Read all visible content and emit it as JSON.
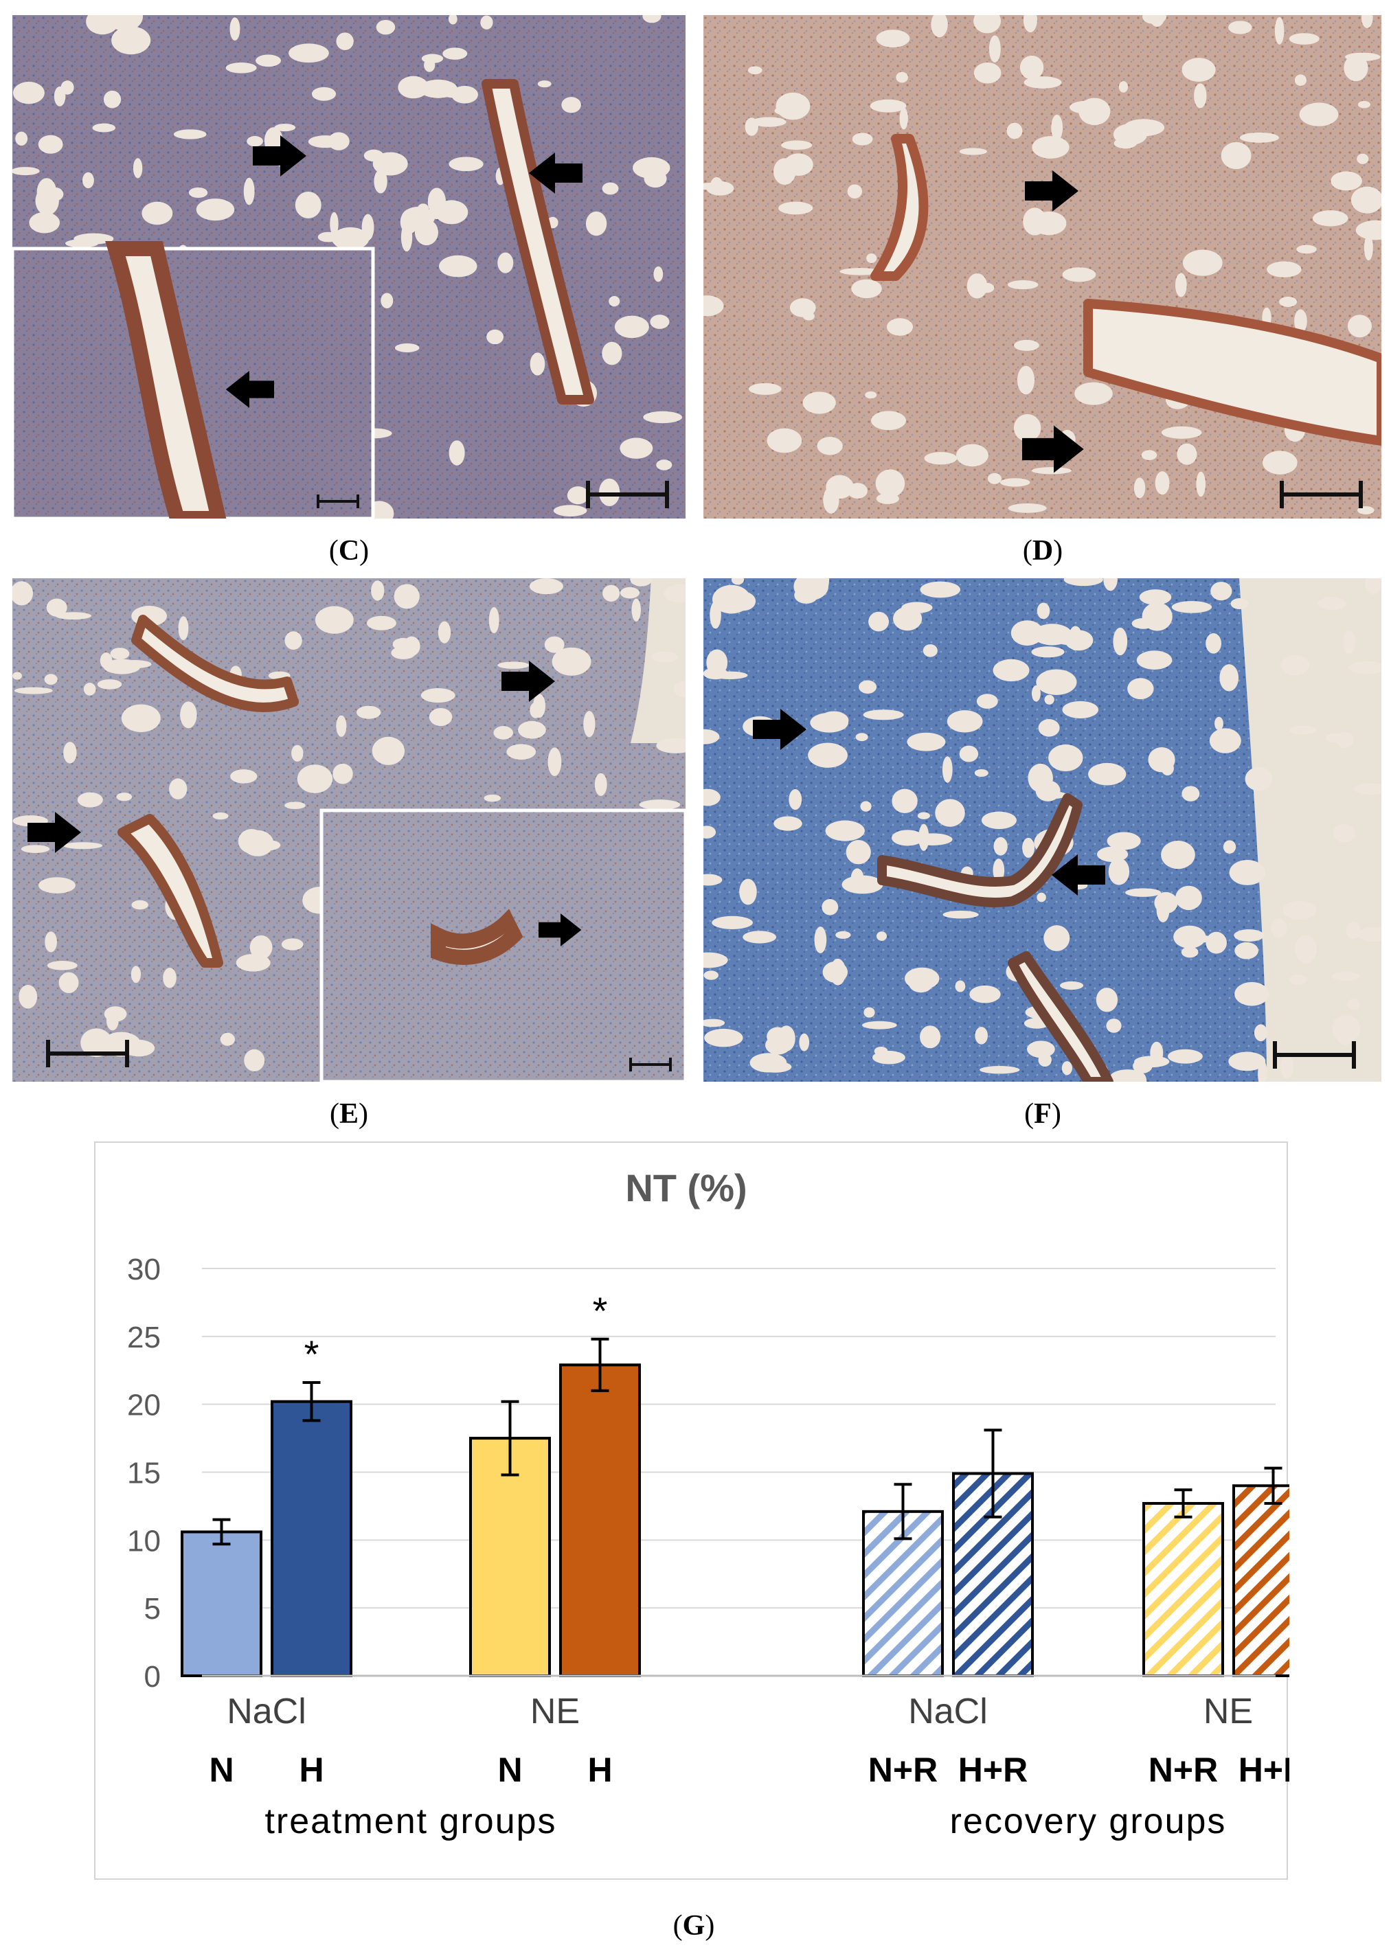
{
  "panels": [
    {
      "id": "C",
      "label": "C",
      "has_inset": true,
      "arrows": 3
    },
    {
      "id": "D",
      "label": "D",
      "has_inset": false,
      "arrows": 2
    },
    {
      "id": "E",
      "label": "E",
      "has_inset": true,
      "arrows": 3
    },
    {
      "id": "F",
      "label": "F",
      "has_inset": false,
      "arrows": 2
    }
  ],
  "panel_labels": {
    "C": "C",
    "D": "D",
    "E": "E",
    "F": "F",
    "G": "G"
  },
  "colors": {
    "nacl_n": "#8eaadb",
    "nacl_h": "#2f5597",
    "ne_n": "#ffd966",
    "ne_h": "#c55a11",
    "stain_blue": "#5f7fb0",
    "stain_brown": "#a0553a"
  },
  "chart_data": {
    "type": "bar",
    "title": "NT (%)",
    "ylim": [
      0,
      30
    ],
    "yticks": [
      "0",
      "5",
      "10",
      "15",
      "20",
      "25",
      "30"
    ],
    "grid": true,
    "groups": [
      {
        "name": "NaCl",
        "section": "treatment groups",
        "bars": [
          {
            "label": "N",
            "value": 10.6,
            "err": 0.9,
            "pattern": "solid",
            "color": "#8eaadb",
            "sig": ""
          },
          {
            "label": "H",
            "value": 20.2,
            "err": 1.4,
            "pattern": "solid",
            "color": "#2f5597",
            "sig": "*"
          }
        ]
      },
      {
        "name": "NE",
        "section": "treatment groups",
        "bars": [
          {
            "label": "N",
            "value": 17.5,
            "err": 2.7,
            "pattern": "solid",
            "color": "#ffd966",
            "sig": ""
          },
          {
            "label": "H",
            "value": 22.9,
            "err": 1.9,
            "pattern": "solid",
            "color": "#c55a11",
            "sig": "*"
          }
        ]
      },
      {
        "name": "NaCl",
        "section": "recovery groups",
        "bars": [
          {
            "label": "N+R",
            "value": 12.1,
            "err": 2.0,
            "pattern": "hatch",
            "color": "#8eaadb",
            "sig": ""
          },
          {
            "label": "H+R",
            "value": 14.9,
            "err": 3.2,
            "pattern": "hatch",
            "color": "#2f5597",
            "sig": ""
          }
        ]
      },
      {
        "name": "NE",
        "section": "recovery groups",
        "bars": [
          {
            "label": "N+R",
            "value": 12.7,
            "err": 1.0,
            "pattern": "hatch",
            "color": "#ffd966",
            "sig": ""
          },
          {
            "label": "H+R",
            "value": 14.0,
            "err": 1.3,
            "pattern": "hatch",
            "color": "#c55a11",
            "sig": ""
          }
        ]
      }
    ],
    "sections": [
      "treatment groups",
      "recovery groups"
    ]
  }
}
